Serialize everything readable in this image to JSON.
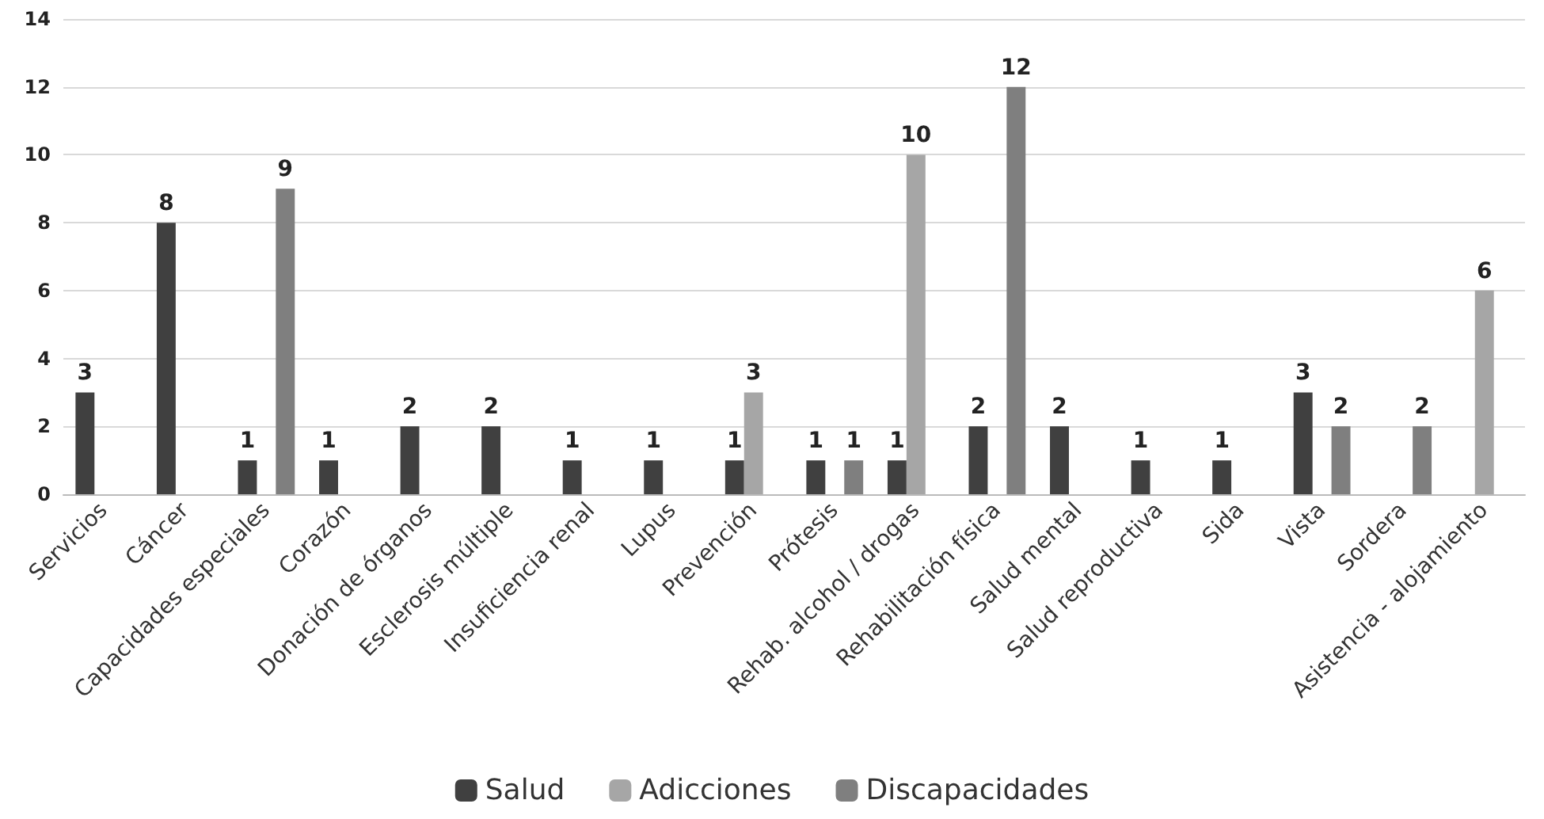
{
  "chart_data": {
    "type": "bar",
    "categories": [
      "Servicios",
      "Cáncer",
      "Capacidades especiales",
      "Corazón",
      "Donación de órganos",
      "Esclerosis múltiple",
      "Insuficiencia renal",
      "Lupus",
      "Prevención",
      "Prótesis",
      "Rehab. alcohol / drogas",
      "Rehabilitación física",
      "Salud mental",
      "Salud reproductiva",
      "Sida",
      "Vista",
      "Sordera",
      "Asistencia - alojamiento"
    ],
    "series": [
      {
        "name": "Salud",
        "color": "#404040",
        "values": [
          3,
          8,
          1,
          1,
          2,
          2,
          1,
          1,
          1,
          1,
          1,
          2,
          2,
          1,
          1,
          3,
          null,
          null
        ]
      },
      {
        "name": "Adicciones",
        "color": "#a6a6a6",
        "values": [
          null,
          null,
          null,
          null,
          null,
          null,
          null,
          null,
          3,
          null,
          10,
          null,
          null,
          null,
          null,
          null,
          null,
          6
        ]
      },
      {
        "name": "Discapacidades",
        "color": "#7f7f7f",
        "values": [
          null,
          null,
          9,
          null,
          null,
          null,
          null,
          null,
          null,
          1,
          null,
          12,
          null,
          null,
          null,
          2,
          2,
          null
        ]
      }
    ],
    "ylim": [
      0,
      14
    ],
    "yticks": [
      0,
      2,
      4,
      6,
      8,
      10,
      12,
      14
    ],
    "grid": "y",
    "legend": "bottom",
    "data_labels": true
  }
}
